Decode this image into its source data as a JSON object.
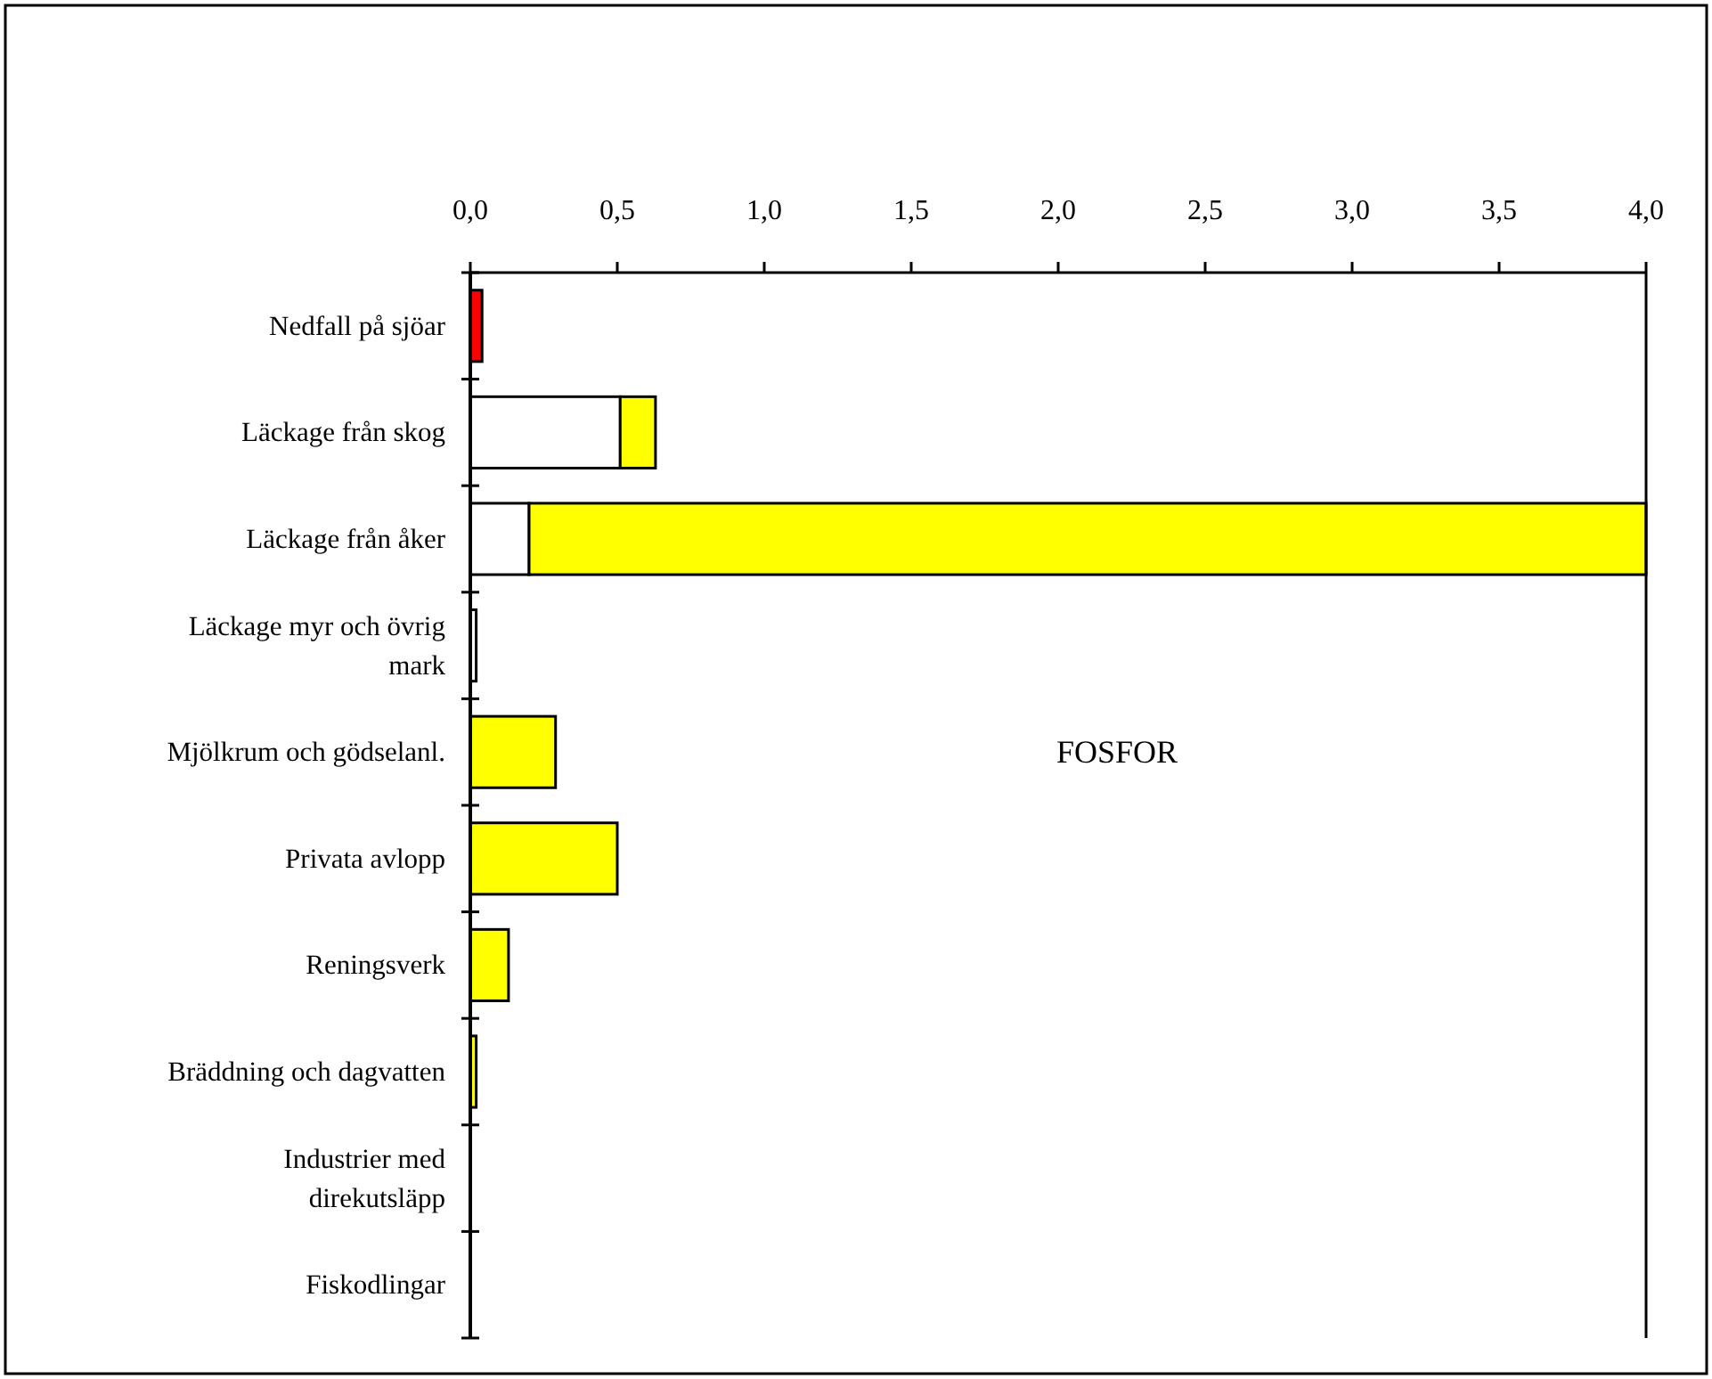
{
  "chart_data": {
    "type": "bar",
    "orientation": "horizontal",
    "stacked": true,
    "categories": [
      "Nedfall på sjöar",
      "Läckage från skog",
      "Läckage från åker",
      "Läckage myr och övrig mark",
      "Mjölkrum och gödselanl.",
      "Privata avlopp",
      "Reningsverk",
      "Bräddning och dagvatten",
      "Industrier med direkutsläpp",
      "Fiskodlingar"
    ],
    "series": [
      {
        "color": "#ffffff",
        "values": [
          0,
          0.51,
          0.2,
          0.02,
          0,
          0,
          0,
          0,
          0,
          0
        ]
      },
      {
        "color": "#ffff00",
        "values": [
          0,
          0.12,
          3.8,
          0,
          0.29,
          0.5,
          0.13,
          0.02,
          0,
          0
        ]
      },
      {
        "color": "#ff0000",
        "values": [
          0.04,
          0,
          0,
          0,
          0,
          0,
          0,
          0,
          0,
          0
        ]
      }
    ],
    "xlim": [
      0,
      4
    ],
    "xticks": [
      {
        "value": 0,
        "label": "0,0"
      },
      {
        "value": 0.5,
        "label": "0,5"
      },
      {
        "value": 1,
        "label": "1,0"
      },
      {
        "value": 1.5,
        "label": "1,5"
      },
      {
        "value": 2,
        "label": "2,0"
      },
      {
        "value": 2.5,
        "label": "2,5"
      },
      {
        "value": 3,
        "label": "3,0"
      },
      {
        "value": 3.5,
        "label": "3,5"
      },
      {
        "value": 4,
        "label": "4,0"
      }
    ],
    "annotations": [
      "FOSFOR"
    ],
    "grid": false
  }
}
